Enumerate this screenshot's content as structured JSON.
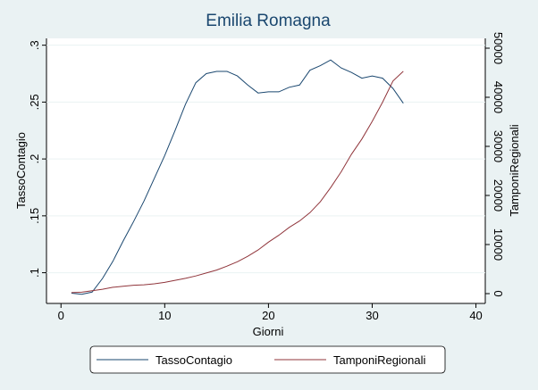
{
  "chart_data": {
    "type": "line",
    "title": "Emilia Romagna",
    "xlabel": "Giorni",
    "ylabel": "TassoContagio",
    "y2label": "TamponiRegionali",
    "x": [
      1,
      2,
      3,
      4,
      5,
      6,
      7,
      8,
      9,
      10,
      11,
      12,
      13,
      14,
      15,
      16,
      17,
      18,
      19,
      20,
      21,
      22,
      23,
      24,
      25,
      26,
      27,
      28,
      29,
      30,
      31,
      32,
      33
    ],
    "series": [
      {
        "name": "TassoContagio",
        "color": "#1a476f",
        "values": [
          0.082,
          0.081,
          0.083,
          0.095,
          0.11,
          0.128,
          0.145,
          0.163,
          0.183,
          0.203,
          0.225,
          0.248,
          0.267,
          0.275,
          0.277,
          0.277,
          0.273,
          0.265,
          0.258,
          0.259,
          0.259,
          0.263,
          0.265,
          0.278,
          0.282,
          0.287,
          0.28,
          0.276,
          0.271,
          0.273,
          0.271,
          0.262,
          0.249
        ]
      },
      {
        "name": "TamponiRegionali",
        "color": "#90353b",
        "axis": "y2",
        "values": [
          200,
          300,
          600,
          900,
          1300,
          1500,
          1700,
          1800,
          2000,
          2300,
          2700,
          3100,
          3600,
          4200,
          4800,
          5600,
          6500,
          7600,
          8900,
          10500,
          11900,
          13500,
          14800,
          16500,
          18700,
          21600,
          24800,
          28400,
          31500,
          35100,
          39000,
          43300,
          45300
        ]
      }
    ],
    "xlim": [
      -1.4,
      40.9
    ],
    "xticks": [
      0,
      10,
      20,
      30,
      40
    ],
    "ylim": [
      0.073,
      0.306
    ],
    "yticks": [
      {
        "value": 0.1,
        "label": ".1"
      },
      {
        "value": 0.15,
        "label": ".15"
      },
      {
        "value": 0.2,
        "label": ".2"
      },
      {
        "value": 0.25,
        "label": ".25"
      },
      {
        "value": 0.3,
        "label": ".3"
      }
    ],
    "y2lim": [
      -2000,
      52000
    ],
    "y2ticks": [
      0,
      10000,
      20000,
      30000,
      40000,
      50000
    ],
    "grid": true,
    "legend": "bottom"
  }
}
